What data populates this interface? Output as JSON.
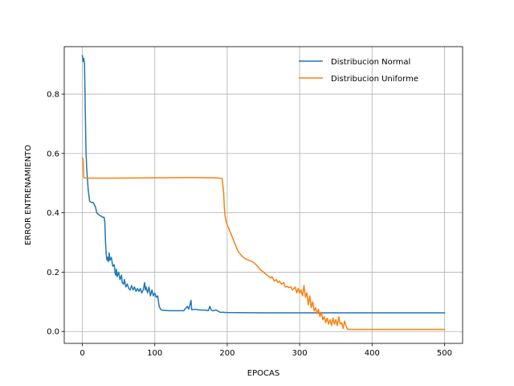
{
  "chart_data": {
    "type": "line",
    "title": "",
    "xlabel": "EPOCAS",
    "ylabel": "ERROR ENTRENAMIENTO",
    "xlim": [
      -25,
      525
    ],
    "ylim": [
      -0.04,
      0.96
    ],
    "xticks": [
      0,
      100,
      200,
      300,
      400,
      500
    ],
    "yticks": [
      0.0,
      0.2,
      0.4,
      0.6,
      0.8
    ],
    "xtick_labels": [
      "0",
      "100",
      "200",
      "300",
      "400",
      "500"
    ],
    "ytick_labels": [
      "0.0",
      "0.2",
      "0.4",
      "0.6",
      "0.8"
    ],
    "grid": true,
    "legend_position": "top-right",
    "series": [
      {
        "name": "Distribucion Normal",
        "color": "#1f77b4",
        "points": [
          [
            0,
            0.93
          ],
          [
            1,
            0.91
          ],
          [
            2,
            0.92
          ],
          [
            3,
            0.9
          ],
          [
            4,
            0.75
          ],
          [
            5,
            0.61
          ],
          [
            6,
            0.55
          ],
          [
            8,
            0.48
          ],
          [
            10,
            0.44
          ],
          [
            12,
            0.435
          ],
          [
            15,
            0.435
          ],
          [
            18,
            0.42
          ],
          [
            20,
            0.4
          ],
          [
            22,
            0.395
          ],
          [
            25,
            0.39
          ],
          [
            28,
            0.385
          ],
          [
            30,
            0.385
          ],
          [
            31,
            0.37
          ],
          [
            32,
            0.3
          ],
          [
            33,
            0.26
          ],
          [
            34,
            0.24
          ],
          [
            35,
            0.25
          ],
          [
            36,
            0.235
          ],
          [
            37,
            0.265
          ],
          [
            38,
            0.24
          ],
          [
            40,
            0.25
          ],
          [
            42,
            0.22
          ],
          [
            44,
            0.225
          ],
          [
            45,
            0.2
          ],
          [
            46,
            0.19
          ],
          [
            47,
            0.21
          ],
          [
            48,
            0.185
          ],
          [
            50,
            0.2
          ],
          [
            52,
            0.175
          ],
          [
            54,
            0.19
          ],
          [
            55,
            0.165
          ],
          [
            57,
            0.16
          ],
          [
            58,
            0.175
          ],
          [
            60,
            0.15
          ],
          [
            62,
            0.16
          ],
          [
            64,
            0.145
          ],
          [
            66,
            0.14
          ],
          [
            68,
            0.155
          ],
          [
            70,
            0.14
          ],
          [
            72,
            0.15
          ],
          [
            74,
            0.135
          ],
          [
            76,
            0.145
          ],
          [
            78,
            0.135
          ],
          [
            80,
            0.145
          ],
          [
            82,
            0.13
          ],
          [
            84,
            0.14
          ],
          [
            86,
            0.165
          ],
          [
            87,
            0.14
          ],
          [
            88,
            0.15
          ],
          [
            90,
            0.13
          ],
          [
            92,
            0.15
          ],
          [
            94,
            0.12
          ],
          [
            96,
            0.14
          ],
          [
            98,
            0.12
          ],
          [
            100,
            0.13
          ],
          [
            102,
            0.115
          ],
          [
            104,
            0.12
          ],
          [
            106,
            0.085
          ],
          [
            108,
            0.075
          ],
          [
            110,
            0.072
          ],
          [
            120,
            0.07
          ],
          [
            130,
            0.07
          ],
          [
            140,
            0.07
          ],
          [
            145,
            0.085
          ],
          [
            147,
            0.075
          ],
          [
            150,
            0.105
          ],
          [
            151,
            0.073
          ],
          [
            155,
            0.075
          ],
          [
            160,
            0.073
          ],
          [
            165,
            0.072
          ],
          [
            170,
            0.072
          ],
          [
            174,
            0.07
          ],
          [
            176,
            0.085
          ],
          [
            178,
            0.072
          ],
          [
            180,
            0.07
          ],
          [
            185,
            0.072
          ],
          [
            190,
            0.065
          ],
          [
            200,
            0.064
          ],
          [
            250,
            0.063
          ],
          [
            300,
            0.063
          ],
          [
            350,
            0.063
          ],
          [
            400,
            0.063
          ],
          [
            450,
            0.063
          ],
          [
            500,
            0.063
          ]
        ]
      },
      {
        "name": "Distribucion Uniforme",
        "color": "#ff7f0e",
        "points": [
          [
            0,
            0.585
          ],
          [
            1,
            0.58
          ],
          [
            2,
            0.52
          ],
          [
            3,
            0.517
          ],
          [
            10,
            0.517
          ],
          [
            50,
            0.517
          ],
          [
            100,
            0.518
          ],
          [
            150,
            0.519
          ],
          [
            180,
            0.518
          ],
          [
            190,
            0.517
          ],
          [
            193,
            0.515
          ],
          [
            195,
            0.47
          ],
          [
            196,
            0.42
          ],
          [
            197,
            0.39
          ],
          [
            198,
            0.375
          ],
          [
            200,
            0.36
          ],
          [
            205,
            0.33
          ],
          [
            210,
            0.3
          ],
          [
            215,
            0.27
          ],
          [
            220,
            0.255
          ],
          [
            225,
            0.245
          ],
          [
            230,
            0.24
          ],
          [
            235,
            0.235
          ],
          [
            240,
            0.225
          ],
          [
            245,
            0.21
          ],
          [
            250,
            0.2
          ],
          [
            255,
            0.19
          ],
          [
            258,
            0.185
          ],
          [
            260,
            0.18
          ],
          [
            262,
            0.185
          ],
          [
            265,
            0.17
          ],
          [
            268,
            0.175
          ],
          [
            270,
            0.165
          ],
          [
            272,
            0.17
          ],
          [
            275,
            0.16
          ],
          [
            278,
            0.165
          ],
          [
            280,
            0.15
          ],
          [
            283,
            0.152
          ],
          [
            285,
            0.148
          ],
          [
            288,
            0.15
          ],
          [
            290,
            0.14
          ],
          [
            292,
            0.145
          ],
          [
            294,
            0.15
          ],
          [
            296,
            0.13
          ],
          [
            298,
            0.145
          ],
          [
            300,
            0.13
          ],
          [
            302,
            0.14
          ],
          [
            304,
            0.12
          ],
          [
            306,
            0.155
          ],
          [
            308,
            0.115
          ],
          [
            310,
            0.13
          ],
          [
            312,
            0.09
          ],
          [
            314,
            0.12
          ],
          [
            316,
            0.08
          ],
          [
            318,
            0.1
          ],
          [
            320,
            0.07
          ],
          [
            322,
            0.08
          ],
          [
            324,
            0.06
          ],
          [
            326,
            0.075
          ],
          [
            328,
            0.05
          ],
          [
            330,
            0.065
          ],
          [
            332,
            0.04
          ],
          [
            334,
            0.05
          ],
          [
            336,
            0.03
          ],
          [
            338,
            0.045
          ],
          [
            340,
            0.025
          ],
          [
            342,
            0.04
          ],
          [
            344,
            0.02
          ],
          [
            346,
            0.045
          ],
          [
            348,
            0.025
          ],
          [
            350,
            0.04
          ],
          [
            352,
            0.02
          ],
          [
            354,
            0.05
          ],
          [
            356,
            0.025
          ],
          [
            358,
            0.03
          ],
          [
            360,
            0.01
          ],
          [
            362,
            0.035
          ],
          [
            364,
            0.02
          ],
          [
            366,
            0.008
          ],
          [
            370,
            0.007
          ],
          [
            400,
            0.007
          ],
          [
            450,
            0.007
          ],
          [
            500,
            0.007
          ]
        ]
      }
    ]
  }
}
